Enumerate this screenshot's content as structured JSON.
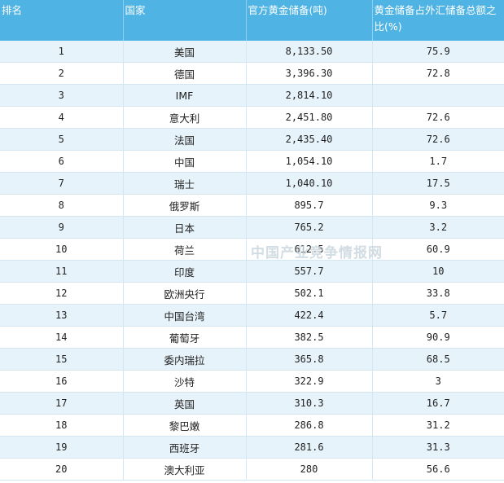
{
  "table": {
    "headers": [
      "排名",
      "国家",
      "官方黄金储备(吨)",
      "黄金储备占外汇储备总额之比(%)"
    ],
    "rows": [
      [
        "1",
        "美国",
        "8,133.50",
        "75.9"
      ],
      [
        "2",
        "德国",
        "3,396.30",
        "72.8"
      ],
      [
        "3",
        "IMF",
        "2,814.10",
        ""
      ],
      [
        "4",
        "意大利",
        "2,451.80",
        "72.6"
      ],
      [
        "5",
        "法国",
        "2,435.40",
        "72.6"
      ],
      [
        "6",
        "中国",
        "1,054.10",
        "1.7"
      ],
      [
        "7",
        "瑞士",
        "1,040.10",
        "17.5"
      ],
      [
        "8",
        "俄罗斯",
        "895.7",
        "9.3"
      ],
      [
        "9",
        "日本",
        "765.2",
        "3.2"
      ],
      [
        "10",
        "荷兰",
        "612.5",
        "60.9"
      ],
      [
        "11",
        "印度",
        "557.7",
        "10"
      ],
      [
        "12",
        "欧洲央行",
        "502.1",
        "33.8"
      ],
      [
        "13",
        "中国台湾",
        "422.4",
        "5.7"
      ],
      [
        "14",
        "葡萄牙",
        "382.5",
        "90.9"
      ],
      [
        "15",
        "委内瑞拉",
        "365.8",
        "68.5"
      ],
      [
        "16",
        "沙特",
        "322.9",
        "3"
      ],
      [
        "17",
        "英国",
        "310.3",
        "16.7"
      ],
      [
        "18",
        "黎巴嫩",
        "286.8",
        "31.2"
      ],
      [
        "19",
        "西班牙",
        "281.6",
        "31.3"
      ],
      [
        "20",
        "澳大利亚",
        "280",
        "56.6"
      ]
    ]
  },
  "watermark": "中国产业竞争情报网"
}
